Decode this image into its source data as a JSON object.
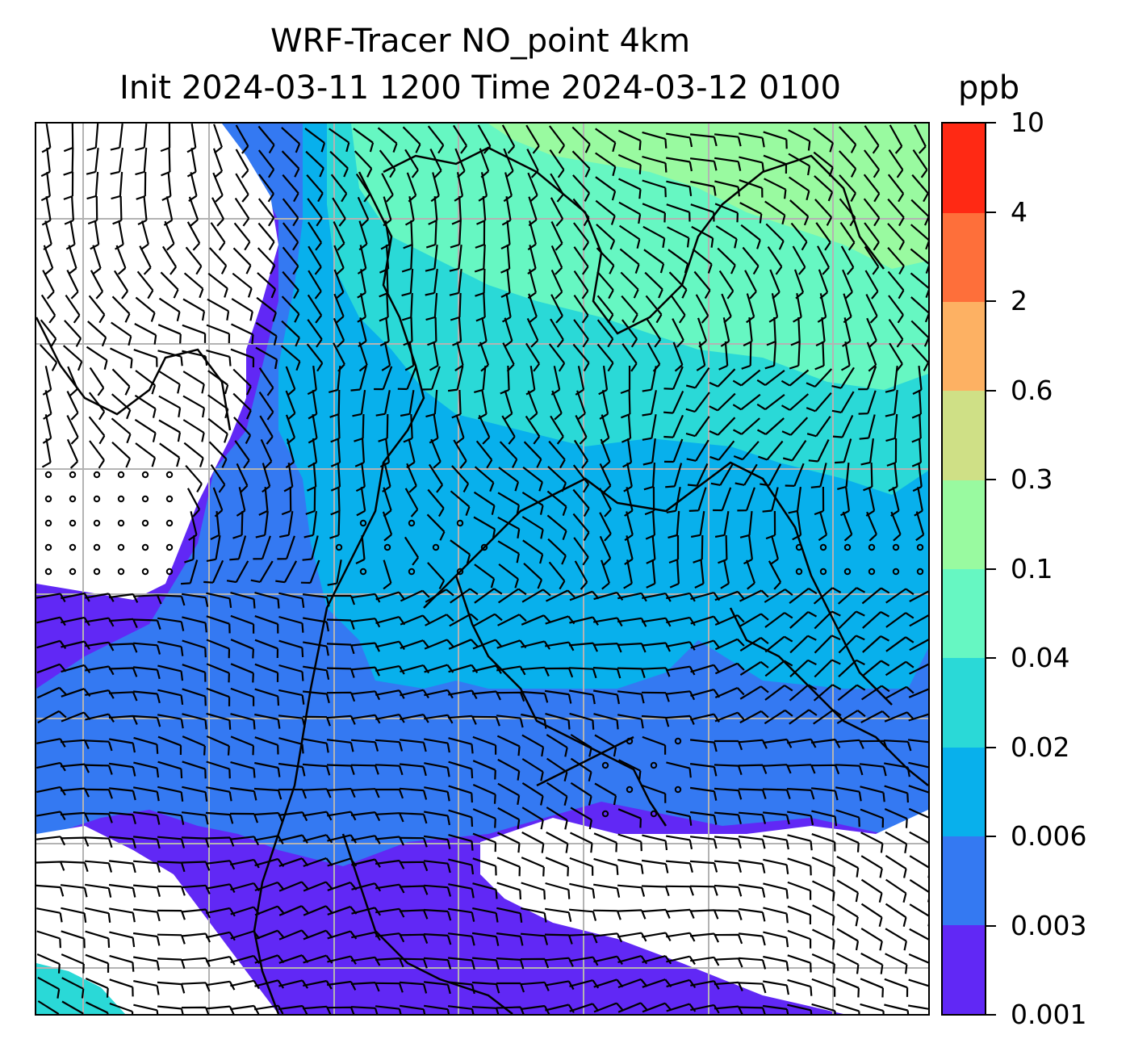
{
  "title": {
    "line1": "WRF-Tracer NO_point 4km",
    "line2": "Init 2024-03-11 1200 Time 2024-03-12 0100",
    "unit": "ppb"
  },
  "colorbar": {
    "levels": [
      "0.001",
      "0.003",
      "0.006",
      "0.02",
      "0.04",
      "0.1",
      "0.3",
      "0.6",
      "2",
      "4",
      "10"
    ],
    "colors": [
      "#6128f5",
      "#3479f2",
      "#08b0ec",
      "#2ad9d7",
      "#66f7c2",
      "#99faa0",
      "#cfe086",
      "#fdb163",
      "#fe6f3a",
      "#ff2914"
    ]
  },
  "map": {
    "gridline_color": "#b3b3b3",
    "coastline_color": "#000000",
    "wind_barb_color": "#000000"
  }
}
